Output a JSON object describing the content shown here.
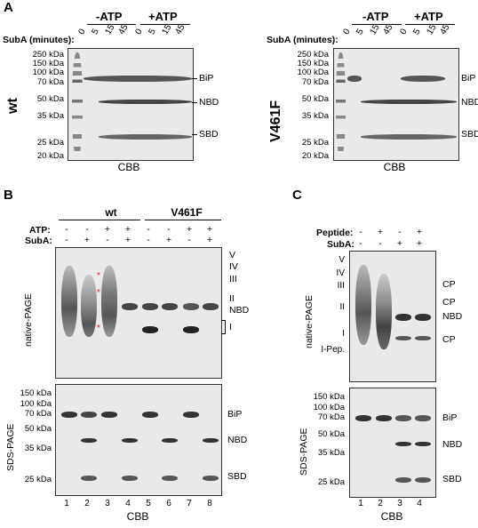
{
  "panelA": {
    "letter": "A",
    "subA_label": "SubA (minutes):",
    "minus_atp": "-ATP",
    "plus_atp": "+ATP",
    "timepoints": [
      "0",
      "5",
      "15",
      "45",
      "0",
      "5",
      "15",
      "45"
    ],
    "markers": [
      "250 kDa",
      "150 kDa",
      "100 kDa",
      "70 kDa",
      "50 kDa",
      "35 kDa",
      "25 kDa",
      "20 kDa"
    ],
    "band_labels": [
      "BiP",
      "NBD",
      "SBD"
    ],
    "footer": "CBB",
    "left_gel_label": "wt",
    "right_gel_label": "V461F"
  },
  "panelB": {
    "letter": "B",
    "group_wt": "wt",
    "group_v461f": "V461F",
    "atp_label": "ATP:",
    "suba_label": "SubA:",
    "atp_signs": [
      "-",
      "-",
      "+",
      "+",
      "-",
      "-",
      "+",
      "+"
    ],
    "suba_signs": [
      "-",
      "+",
      "-",
      "+",
      "-",
      "+",
      "-",
      "+"
    ],
    "native_label": "native-PAGE",
    "sds_label": "SDS-PAGE",
    "native_right": [
      "V",
      "IV",
      "III",
      "II",
      "NBD",
      "I"
    ],
    "sds_markers": [
      "150 kDa",
      "100 kDa",
      "70 kDa",
      "50 kDa",
      "35 kDa",
      "25 kDa"
    ],
    "sds_right": [
      "BiP",
      "NBD",
      "SBD"
    ],
    "lanes": [
      "1",
      "2",
      "3",
      "4",
      "5",
      "6",
      "7",
      "8"
    ],
    "footer": "CBB",
    "stars": [
      "*",
      "*",
      "*"
    ]
  },
  "panelC": {
    "letter": "C",
    "peptide_label": "Peptide:",
    "suba_label": "SubA:",
    "peptide_signs": [
      "-",
      "+",
      "-",
      "+"
    ],
    "suba_signs": [
      "-",
      "-",
      "+",
      "+"
    ],
    "native_label": "native-PAGE",
    "sds_label": "SDS-PAGE",
    "native_left": [
      "V",
      "IV",
      "III",
      "II",
      "I",
      "I-Pep."
    ],
    "native_right": [
      "CP",
      "CP",
      "NBD",
      "CP"
    ],
    "sds_markers": [
      "150 kDa",
      "100 kDa",
      "70 kDa",
      "50 kDa",
      "35 kDa",
      "25 kDa"
    ],
    "sds_right": [
      "BiP",
      "NBD",
      "SBD"
    ],
    "lanes": [
      "1",
      "2",
      "3",
      "4"
    ],
    "footer": "CBB"
  }
}
